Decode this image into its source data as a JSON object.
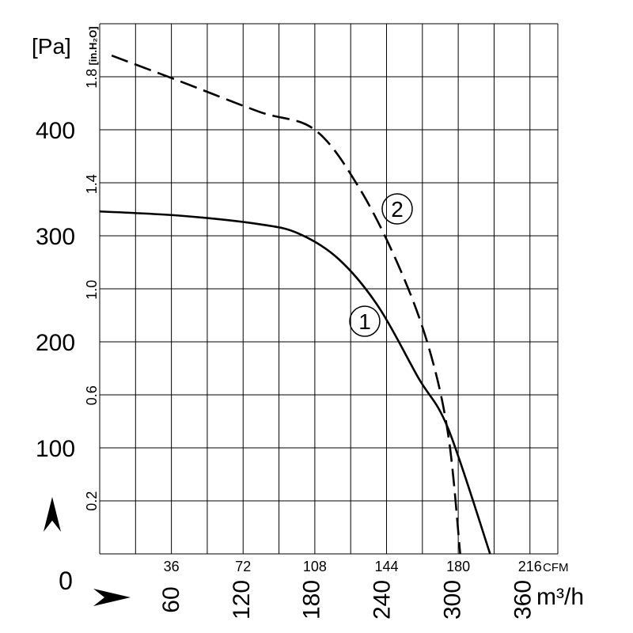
{
  "chart_data": {
    "type": "line",
    "x_units": [
      "CFM",
      "m³/h"
    ],
    "y_units": [
      "[Pa]",
      "[in.H₂O]"
    ],
    "x_range_cfm": [
      0,
      230
    ],
    "y_range_pa": [
      0,
      500
    ],
    "x_ticks_cfm": [
      "36",
      "72",
      "108",
      "144",
      "180",
      "216"
    ],
    "x_ticks_m3h": [
      "60",
      "120",
      "180",
      "240",
      "300",
      "360"
    ],
    "y_ticks_pa": [
      "100",
      "200",
      "300",
      "400"
    ],
    "y_ticks_inh2o": [
      "0.2",
      "0.6",
      "1.0",
      "1.4",
      "1.8"
    ],
    "origin_label": "0",
    "grid": true,
    "unit_labels": {
      "pa": "[Pa]",
      "inh2o": "[in.H₂O]",
      "cfm": "CFM",
      "m3h": "m³/h"
    },
    "series": [
      {
        "name": "1",
        "style": "solid",
        "points_cfm_pa": [
          [
            0,
            323
          ],
          [
            40,
            319
          ],
          [
            80,
            311
          ],
          [
            100,
            302
          ],
          [
            120,
            278
          ],
          [
            140,
            233
          ],
          [
            160,
            166
          ],
          [
            175,
            118
          ],
          [
            196,
            0
          ]
        ]
      },
      {
        "name": "2",
        "style": "dashed",
        "points_cfm_pa": [
          [
            6,
            470
          ],
          [
            40,
            446
          ],
          [
            80,
            417
          ],
          [
            108,
            400
          ],
          [
            130,
            346
          ],
          [
            150,
            272
          ],
          [
            165,
            196
          ],
          [
            175,
            112
          ],
          [
            181,
            0
          ]
        ]
      }
    ]
  }
}
